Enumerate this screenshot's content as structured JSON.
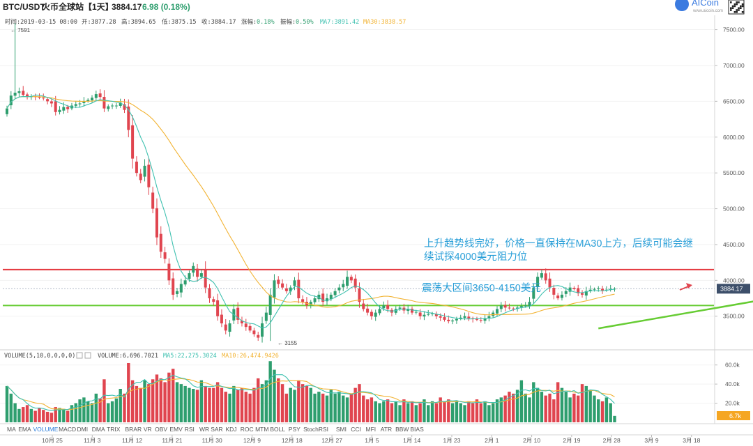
{
  "header": {
    "pair": "BTC/USDT",
    "exchange": "火币全球站",
    "interval": "【1天】",
    "price": "3884.17",
    "change": "6.98 (0.18%)",
    "brand": "AICoin",
    "brand_url": "www.aicoin.com"
  },
  "ohlc_line": {
    "time_label": "时间:2019-03-15 08:00",
    "open_label": "开:3877.28",
    "high_label": "高:3894.65",
    "low_label": "低:3875.15",
    "close_label": "收:3884.17",
    "chg_label": "涨幅:",
    "chg_value": "0.18%",
    "amp_label": "振幅:",
    "amp_value": "0.50%",
    "ma7_label": "MA7:3891.42",
    "ma30_label": "MA30:3838.57"
  },
  "annotations": {
    "trend_text_line1": "上升趋势线完好，价格一直保持在MA30上方，后续可能会继",
    "trend_text_line2": "续试探4000美元阻力位",
    "range_text": "震荡大区间3650-4150美元",
    "high_marker": "7591",
    "low_marker": "3155",
    "last_price_tag": "3884.17",
    "last_volume_tag": "6.7k"
  },
  "volume_legend": {
    "title": "VOLUME(5,10,0,0,0,0)",
    "value": "VOLUME:6,696.7021",
    "ma5": "MA5:22,275.3024",
    "ma10": "MA10:26,474.9426"
  },
  "indicator_tabs": [
    "MA",
    "EMA",
    "VOLUME",
    "MACD",
    "DMI",
    "DMA",
    "TRIX",
    "BRAR",
    "VR",
    "OBV",
    "EMV",
    "RSI",
    "WR",
    "SAR",
    "KDJ",
    "ROC",
    "MTM",
    "BOLL",
    "PSY",
    "StochRSI",
    "SMI",
    "CCI",
    "MFI",
    "ATR",
    "BBW",
    "BIAS"
  ],
  "active_tab": "VOLUME",
  "colors": {
    "up": "#2e9e6e",
    "down": "#e0454f",
    "ma7": "#3fc1b0",
    "ma30": "#f2b333",
    "resistance_line": "#e4383f",
    "support_line": "#66cc33",
    "trendline": "#66cc33",
    "annotation_text": "#2a9fd8",
    "last_tag": "#3d4f6a",
    "vol_tag": "#f5a623"
  },
  "chart_data": {
    "type": "candlestick",
    "price_axis": {
      "ticks": [
        3500,
        4000,
        4500,
        5000,
        5500,
        6000,
        6500,
        7000,
        7500
      ],
      "range": [
        3050,
        7700
      ]
    },
    "volume_axis": {
      "ticks": [
        "20.0k",
        "40.0k",
        "60.0k"
      ],
      "tick_values": [
        20000,
        40000,
        60000
      ],
      "range": [
        0,
        70000
      ]
    },
    "x_labels": [
      "10月 25",
      "11月 3",
      "11月 12",
      "11月 21",
      "11月 30",
      "12月 9",
      "12月 18",
      "12月 27",
      "1月 5",
      "1月 14",
      "1月 23",
      "2月 1",
      "2月 10",
      "2月 19",
      "2月 28",
      "3月 9",
      "3月 18"
    ],
    "horizontal_levels": {
      "resistance": 4150,
      "support": 3650
    },
    "trendline": {
      "from": {
        "bar": 146,
        "price": 3330
      },
      "to": {
        "bar": 202,
        "price": 3880
      }
    },
    "closes": [
      6400,
      6580,
      6620,
      6640,
      6590,
      6560,
      6570,
      6560,
      6550,
      6540,
      6500,
      6470,
      6350,
      6380,
      6420,
      6390,
      6440,
      6460,
      6470,
      6500,
      6520,
      6550,
      6600,
      6560,
      6400,
      6430,
      6440,
      6440,
      6480,
      6380,
      6100,
      5700,
      5500,
      5400,
      5600,
      5300,
      5000,
      4600,
      4400,
      4300,
      4000,
      3800,
      3850,
      3950,
      4000,
      4100,
      4200,
      4050,
      4100,
      3900,
      3750,
      3700,
      3500,
      3400,
      3300,
      3400,
      3600,
      3450,
      3400,
      3350,
      3300,
      3250,
      3200,
      3400,
      3550,
      3800,
      4000,
      3950,
      3900,
      3850,
      3900,
      4000,
      3750,
      3700,
      3650,
      3700,
      3750,
      3800,
      3700,
      3750,
      3800,
      3850,
      3900,
      3950,
      4050,
      4000,
      3900,
      3700,
      3600,
      3550,
      3500,
      3550,
      3600,
      3650,
      3600,
      3550,
      3600,
      3620,
      3580,
      3600,
      3550,
      3560,
      3500,
      3520,
      3530,
      3540,
      3500,
      3480,
      3450,
      3430,
      3440,
      3460,
      3480,
      3500,
      3470,
      3460,
      3450,
      3440,
      3470,
      3500,
      3550,
      3600,
      3650,
      3620,
      3610,
      3600,
      3620,
      3640,
      3650,
      3700,
      3900,
      4050,
      4100,
      4000,
      3900,
      3800,
      3750,
      3800,
      3850,
      3900,
      3880,
      3820,
      3800,
      3850,
      3870,
      3880,
      3890,
      3860,
      3870,
      3880,
      3884.17
    ],
    "volumes": [
      38000,
      30000,
      20000,
      14000,
      16000,
      18000,
      14000,
      12000,
      15000,
      13000,
      11000,
      10000,
      16000,
      15000,
      14000,
      12000,
      18000,
      20000,
      24000,
      26000,
      22000,
      20000,
      30000,
      25000,
      45000,
      20000,
      22000,
      25000,
      35000,
      30000,
      62000,
      44000,
      38000,
      36000,
      44000,
      40000,
      45000,
      50000,
      46000,
      42000,
      52000,
      56000,
      42000,
      40000,
      38000,
      36000,
      35000,
      34000,
      44000,
      38000,
      36000,
      36000,
      42000,
      36000,
      32000,
      30000,
      38000,
      34000,
      36000,
      32000,
      30000,
      36000,
      46000,
      40000,
      44000,
      64000,
      55000,
      46000,
      40000,
      30000,
      36000,
      34000,
      44000,
      40000,
      38000,
      36000,
      30000,
      32000,
      30000,
      28000,
      34000,
      30000,
      32000,
      28000,
      26000,
      30000,
      36000,
      40000,
      28000,
      24000,
      26000,
      22000,
      20000,
      22000,
      24000,
      20000,
      22000,
      18000,
      24000,
      20000,
      22000,
      18000,
      20000,
      24000,
      18000,
      22000,
      20000,
      26000,
      22000,
      24000,
      20000,
      22000,
      20000,
      18000,
      22000,
      20000,
      24000,
      20000,
      22000,
      18000,
      20000,
      24000,
      26000,
      28000,
      32000,
      30000,
      34000,
      44000,
      30000,
      26000,
      42000,
      36000,
      32000,
      28000,
      30000,
      24000,
      42000,
      36000,
      32000,
      26000,
      30000,
      28000,
      40000,
      38000,
      34000,
      28000,
      24000,
      22000,
      26000,
      20000,
      6696.7021
    ]
  }
}
